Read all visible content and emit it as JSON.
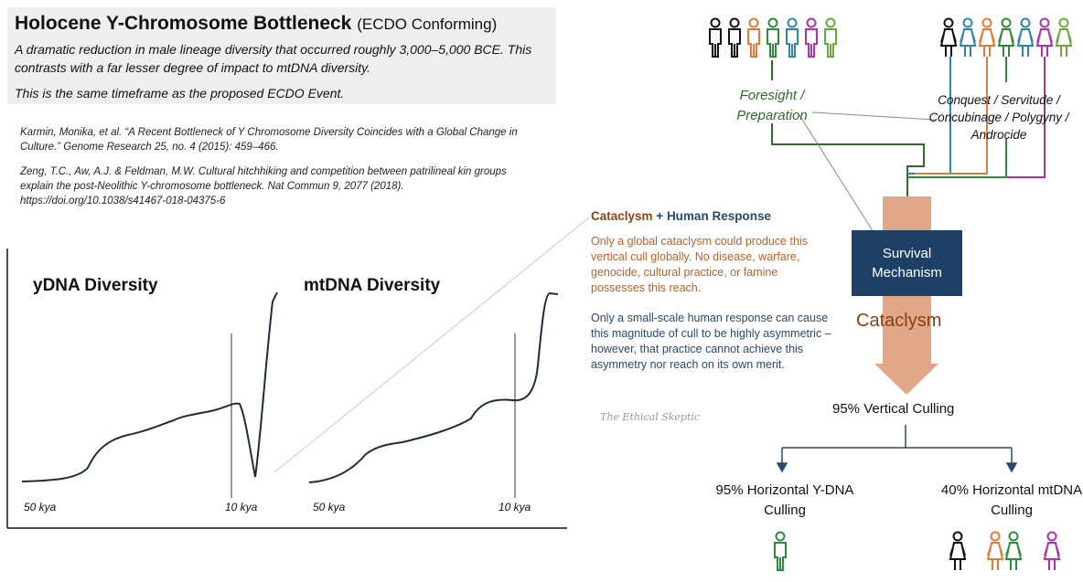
{
  "header": {
    "title": "Holocene Y-Chromosome Bottleneck",
    "title_suffix": "(ECDO Conforming)",
    "intro_line1": "A dramatic reduction in male lineage diversity that occurred roughly 3,000–5,000 BCE. This contrasts with a far lesser degree of impact to mtDNA diversity.",
    "intro_line2": "This is the same timeframe as the proposed ECDO Event."
  },
  "references": [
    "Karmin, Monika, et al. “A Recent Bottleneck of Y Chromosome Diversity Coincides with a Global Change in Culture.” Genome Research 25, no. 4 (2015): 459–466.",
    "Zeng, T.C., Aw, A.J. & Feldman, M.W. Cultural hitchhiking and competition between patrilineal kin groups explain the post-Neolithic Y-chromosome bottleneck. Nat Commun 9, 2077 (2018). https://doi.org/10.1038/s41467-018-04375-6"
  ],
  "charts": {
    "ydna": {
      "title": "yDNA Diversity",
      "x_start_label": "50 kya",
      "x_end_label": "10 kya"
    },
    "mtdna": {
      "title": "mtDNA Diversity",
      "x_start_label": "50 kya",
      "x_end_label": "10 kya"
    }
  },
  "response": {
    "heading_part1": "Cataclysm",
    "heading_plus": " + ",
    "heading_part2": "Human Response",
    "para1": "Only a global cataclysm could produce this vertical cull globally. No disease, warfare, genocide, cultural practice, or famine possesses this reach.",
    "para2": "Only a small-scale human response can cause this magnitude of cull to be highly asymmetric – however, that practice cannot achieve this asymmetry nor reach on its own merit."
  },
  "watermark": "The Ethical Skeptic",
  "flow": {
    "foresight_label": "Foresight / Preparation",
    "conquest_label": "Conquest / Servitude / Concubinage / Polygyny / Androcide",
    "survival_label": "Survival Mechanism",
    "cataclysm_label": "Cataclysm",
    "vertical_label": "95% Vertical Culling",
    "horizontal_y_label": "95% Horizontal Y-DNA Culling",
    "horizontal_mt_label": "40% Horizontal mtDNA Culling"
  },
  "colors": {
    "black": "#111111",
    "orange": "#e07b39",
    "green": "#2e8b3e",
    "blue": "#2e86ab",
    "magenta": "#b030b0",
    "lime": "#6aaa3a",
    "navy": "#1e3f66",
    "arrow": "#e0a888",
    "curve": "#1a2e40"
  },
  "icons": {
    "person": "person-icon",
    "woman": "woman-icon"
  }
}
